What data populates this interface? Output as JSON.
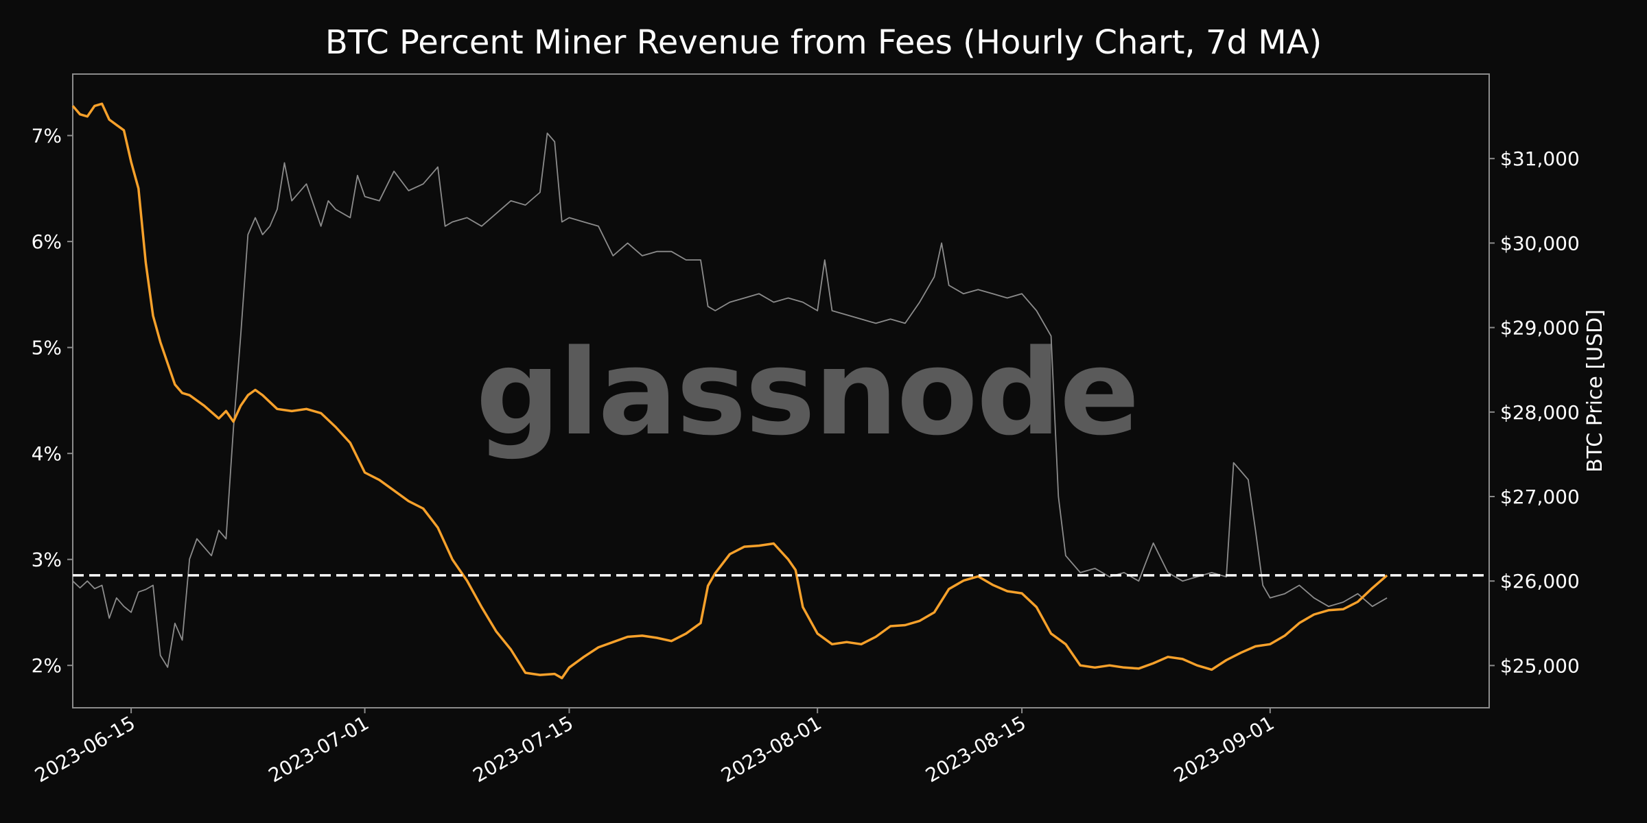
{
  "chart_data": {
    "type": "line",
    "title": "BTC Percent Miner Revenue from Fees (Hourly Chart, 7d MA)",
    "watermark": "glassnode",
    "xlabel": "",
    "ylabel_left": "",
    "ylabel_right": "BTC Price [USD]",
    "x_ticks": [
      "2023-06-15",
      "2023-07-01",
      "2023-07-15",
      "2023-08-01",
      "2023-08-15",
      "2023-09-01"
    ],
    "y_left_ticks": [
      "2%",
      "3%",
      "4%",
      "5%",
      "6%",
      "7%"
    ],
    "y_right_ticks": [
      "$25,000",
      "$26,000",
      "$27,000",
      "$28,000",
      "$29,000",
      "$30,000",
      "$31,000"
    ],
    "xlim": [
      "2023-06-11",
      "2023-09-16"
    ],
    "y_left_lim": [
      1.6,
      7.58
    ],
    "y_right_lim": [
      24500,
      32000
    ],
    "reference_line": {
      "axis": "left",
      "value": 2.85,
      "style": "dashed",
      "color": "#ffffff"
    },
    "grid": false,
    "colors": {
      "fee_share": "#f7a12b",
      "price": "#8c8c8c",
      "background": "#0b0b0b",
      "axes_frame": "#8c8c8c",
      "watermark": "#5a5a5a"
    },
    "series": [
      {
        "axis": "left",
        "color": "#f7a12b",
        "points": [
          [
            "2023-06-11",
            7.28
          ],
          [
            "2023-06-11 12:00",
            7.2
          ],
          [
            "2023-06-12",
            7.18
          ],
          [
            "2023-06-12 12:00",
            7.28
          ],
          [
            "2023-06-13",
            7.3
          ],
          [
            "2023-06-13 12:00",
            7.15
          ],
          [
            "2023-06-14",
            7.1
          ],
          [
            "2023-06-14 12:00",
            7.05
          ],
          [
            "2023-06-15",
            6.75
          ],
          [
            "2023-06-15 12:00",
            6.5
          ],
          [
            "2023-06-16",
            5.8
          ],
          [
            "2023-06-16 12:00",
            5.3
          ],
          [
            "2023-06-17",
            5.05
          ],
          [
            "2023-06-17 12:00",
            4.85
          ],
          [
            "2023-06-18",
            4.65
          ],
          [
            "2023-06-18 12:00",
            4.57
          ],
          [
            "2023-06-19",
            4.55
          ],
          [
            "2023-06-20",
            4.45
          ],
          [
            "2023-06-21",
            4.33
          ],
          [
            "2023-06-21 12:00",
            4.4
          ],
          [
            "2023-06-22",
            4.3
          ],
          [
            "2023-06-22 12:00",
            4.45
          ],
          [
            "2023-06-23",
            4.55
          ],
          [
            "2023-06-23 12:00",
            4.6
          ],
          [
            "2023-06-24",
            4.55
          ],
          [
            "2023-06-25",
            4.42
          ],
          [
            "2023-06-26",
            4.4
          ],
          [
            "2023-06-27",
            4.42
          ],
          [
            "2023-06-28",
            4.38
          ],
          [
            "2023-06-29",
            4.25
          ],
          [
            "2023-06-30",
            4.1
          ],
          [
            "2023-07-01",
            3.82
          ],
          [
            "2023-07-02",
            3.75
          ],
          [
            "2023-07-03",
            3.65
          ],
          [
            "2023-07-04",
            3.55
          ],
          [
            "2023-07-05",
            3.48
          ],
          [
            "2023-07-06",
            3.3
          ],
          [
            "2023-07-07",
            3.0
          ],
          [
            "2023-07-08",
            2.8
          ],
          [
            "2023-07-09",
            2.55
          ],
          [
            "2023-07-10",
            2.32
          ],
          [
            "2023-07-11",
            2.15
          ],
          [
            "2023-07-12",
            1.93
          ],
          [
            "2023-07-13",
            1.91
          ],
          [
            "2023-07-14",
            1.92
          ],
          [
            "2023-07-14 12:00",
            1.88
          ],
          [
            "2023-07-15",
            1.98
          ],
          [
            "2023-07-16",
            2.08
          ],
          [
            "2023-07-17",
            2.17
          ],
          [
            "2023-07-18",
            2.22
          ],
          [
            "2023-07-19",
            2.27
          ],
          [
            "2023-07-20",
            2.28
          ],
          [
            "2023-07-21",
            2.26
          ],
          [
            "2023-07-22",
            2.23
          ],
          [
            "2023-07-23",
            2.3
          ],
          [
            "2023-07-24",
            2.4
          ],
          [
            "2023-07-24 12:00",
            2.75
          ],
          [
            "2023-07-25",
            2.87
          ],
          [
            "2023-07-26",
            3.05
          ],
          [
            "2023-07-27",
            3.12
          ],
          [
            "2023-07-28",
            3.13
          ],
          [
            "2023-07-29",
            3.15
          ],
          [
            "2023-07-30",
            3.0
          ],
          [
            "2023-07-30 12:00",
            2.9
          ],
          [
            "2023-07-31",
            2.55
          ],
          [
            "2023-08-01",
            2.3
          ],
          [
            "2023-08-02",
            2.2
          ],
          [
            "2023-08-03",
            2.22
          ],
          [
            "2023-08-04",
            2.2
          ],
          [
            "2023-08-05",
            2.27
          ],
          [
            "2023-08-06",
            2.37
          ],
          [
            "2023-08-07",
            2.38
          ],
          [
            "2023-08-08",
            2.42
          ],
          [
            "2023-08-09",
            2.5
          ],
          [
            "2023-08-10",
            2.72
          ],
          [
            "2023-08-11",
            2.8
          ],
          [
            "2023-08-12",
            2.84
          ],
          [
            "2023-08-13",
            2.76
          ],
          [
            "2023-08-14",
            2.7
          ],
          [
            "2023-08-15",
            2.68
          ],
          [
            "2023-08-16",
            2.55
          ],
          [
            "2023-08-17",
            2.3
          ],
          [
            "2023-08-18",
            2.2
          ],
          [
            "2023-08-19",
            2.0
          ],
          [
            "2023-08-20",
            1.98
          ],
          [
            "2023-08-21",
            2.0
          ],
          [
            "2023-08-22",
            1.98
          ],
          [
            "2023-08-23",
            1.97
          ],
          [
            "2023-08-24",
            2.02
          ],
          [
            "2023-08-25",
            2.08
          ],
          [
            "2023-08-26",
            2.06
          ],
          [
            "2023-08-27",
            2.0
          ],
          [
            "2023-08-28",
            1.96
          ],
          [
            "2023-08-29",
            2.05
          ],
          [
            "2023-08-30",
            2.12
          ],
          [
            "2023-08-31",
            2.18
          ],
          [
            "2023-09-01",
            2.2
          ],
          [
            "2023-09-02",
            2.28
          ],
          [
            "2023-09-03",
            2.4
          ],
          [
            "2023-09-04",
            2.48
          ],
          [
            "2023-09-05",
            2.52
          ],
          [
            "2023-09-06",
            2.53
          ],
          [
            "2023-09-07",
            2.6
          ],
          [
            "2023-09-08",
            2.73
          ],
          [
            "2023-09-09",
            2.85
          ]
        ]
      },
      {
        "axis": "right",
        "color": "#8c8c8c",
        "points": [
          [
            "2023-06-11",
            26000
          ],
          [
            "2023-06-11 12:00",
            25920
          ],
          [
            "2023-06-12",
            26000
          ],
          [
            "2023-06-12 12:00",
            25910
          ],
          [
            "2023-06-13",
            25950
          ],
          [
            "2023-06-13 12:00",
            25560
          ],
          [
            "2023-06-14",
            25800
          ],
          [
            "2023-06-14 12:00",
            25700
          ],
          [
            "2023-06-15",
            25630
          ],
          [
            "2023-06-15 12:00",
            25870
          ],
          [
            "2023-06-16",
            25900
          ],
          [
            "2023-06-16 12:00",
            25950
          ],
          [
            "2023-06-17",
            25120
          ],
          [
            "2023-06-17 12:00",
            24980
          ],
          [
            "2023-06-18",
            25500
          ],
          [
            "2023-06-18 12:00",
            25300
          ],
          [
            "2023-06-19",
            26260
          ],
          [
            "2023-06-19 12:00",
            26500
          ],
          [
            "2023-06-20",
            26400
          ],
          [
            "2023-06-20 12:00",
            26300
          ],
          [
            "2023-06-21",
            26600
          ],
          [
            "2023-06-21 12:00",
            26500
          ],
          [
            "2023-06-22",
            27800
          ],
          [
            "2023-06-22 12:00",
            28900
          ],
          [
            "2023-06-23",
            30100
          ],
          [
            "2023-06-23 12:00",
            30300
          ],
          [
            "2023-06-24",
            30100
          ],
          [
            "2023-06-24 12:00",
            30200
          ],
          [
            "2023-06-25",
            30400
          ],
          [
            "2023-06-25 12:00",
            30950
          ],
          [
            "2023-06-26",
            30500
          ],
          [
            "2023-06-27",
            30700
          ],
          [
            "2023-06-28",
            30200
          ],
          [
            "2023-06-28 12:00",
            30500
          ],
          [
            "2023-06-29",
            30400
          ],
          [
            "2023-06-30",
            30300
          ],
          [
            "2023-06-30 12:00",
            30800
          ],
          [
            "2023-07-01",
            30550
          ],
          [
            "2023-07-02",
            30500
          ],
          [
            "2023-07-03",
            30850
          ],
          [
            "2023-07-04",
            30620
          ],
          [
            "2023-07-05",
            30700
          ],
          [
            "2023-07-06",
            30900
          ],
          [
            "2023-07-06 12:00",
            30200
          ],
          [
            "2023-07-07",
            30250
          ],
          [
            "2023-07-08",
            30300
          ],
          [
            "2023-07-09",
            30200
          ],
          [
            "2023-07-10",
            30350
          ],
          [
            "2023-07-11",
            30500
          ],
          [
            "2023-07-12",
            30450
          ],
          [
            "2023-07-13",
            30600
          ],
          [
            "2023-07-13 12:00",
            31300
          ],
          [
            "2023-07-14",
            31200
          ],
          [
            "2023-07-14 12:00",
            30250
          ],
          [
            "2023-07-15",
            30300
          ],
          [
            "2023-07-16",
            30250
          ],
          [
            "2023-07-17",
            30200
          ],
          [
            "2023-07-18",
            29850
          ],
          [
            "2023-07-19",
            30000
          ],
          [
            "2023-07-20",
            29850
          ],
          [
            "2023-07-21",
            29900
          ],
          [
            "2023-07-22",
            29900
          ],
          [
            "2023-07-23",
            29800
          ],
          [
            "2023-07-24",
            29800
          ],
          [
            "2023-07-24 12:00",
            29250
          ],
          [
            "2023-07-25",
            29200
          ],
          [
            "2023-07-26",
            29300
          ],
          [
            "2023-07-27",
            29350
          ],
          [
            "2023-07-28",
            29400
          ],
          [
            "2023-07-29",
            29300
          ],
          [
            "2023-07-30",
            29350
          ],
          [
            "2023-07-31",
            29300
          ],
          [
            "2023-08-01",
            29200
          ],
          [
            "2023-08-01 12:00",
            29800
          ],
          [
            "2023-08-02",
            29200
          ],
          [
            "2023-08-03",
            29150
          ],
          [
            "2023-08-04",
            29100
          ],
          [
            "2023-08-05",
            29050
          ],
          [
            "2023-08-06",
            29100
          ],
          [
            "2023-08-07",
            29050
          ],
          [
            "2023-08-08",
            29300
          ],
          [
            "2023-08-09",
            29600
          ],
          [
            "2023-08-09 12:00",
            30000
          ],
          [
            "2023-08-10",
            29500
          ],
          [
            "2023-08-11",
            29400
          ],
          [
            "2023-08-12",
            29450
          ],
          [
            "2023-08-13",
            29400
          ],
          [
            "2023-08-14",
            29350
          ],
          [
            "2023-08-15",
            29400
          ],
          [
            "2023-08-16",
            29200
          ],
          [
            "2023-08-17",
            28900
          ],
          [
            "2023-08-17 12:00",
            27000
          ],
          [
            "2023-08-18",
            26300
          ],
          [
            "2023-08-19",
            26100
          ],
          [
            "2023-08-20",
            26150
          ],
          [
            "2023-08-21",
            26050
          ],
          [
            "2023-08-22",
            26100
          ],
          [
            "2023-08-23",
            26000
          ],
          [
            "2023-08-24",
            26450
          ],
          [
            "2023-08-25",
            26100
          ],
          [
            "2023-08-26",
            26000
          ],
          [
            "2023-08-27",
            26050
          ],
          [
            "2023-08-28",
            26100
          ],
          [
            "2023-08-29",
            26050
          ],
          [
            "2023-08-29 12:00",
            27400
          ],
          [
            "2023-08-30",
            27300
          ],
          [
            "2023-08-30 12:00",
            27200
          ],
          [
            "2023-08-31",
            26600
          ],
          [
            "2023-08-31 12:00",
            25950
          ],
          [
            "2023-09-01",
            25800
          ],
          [
            "2023-09-02",
            25850
          ],
          [
            "2023-09-03",
            25950
          ],
          [
            "2023-09-04",
            25800
          ],
          [
            "2023-09-05",
            25700
          ],
          [
            "2023-09-06",
            25750
          ],
          [
            "2023-09-07",
            25850
          ],
          [
            "2023-09-08",
            25700
          ],
          [
            "2023-09-09",
            25800
          ]
        ]
      }
    ]
  }
}
